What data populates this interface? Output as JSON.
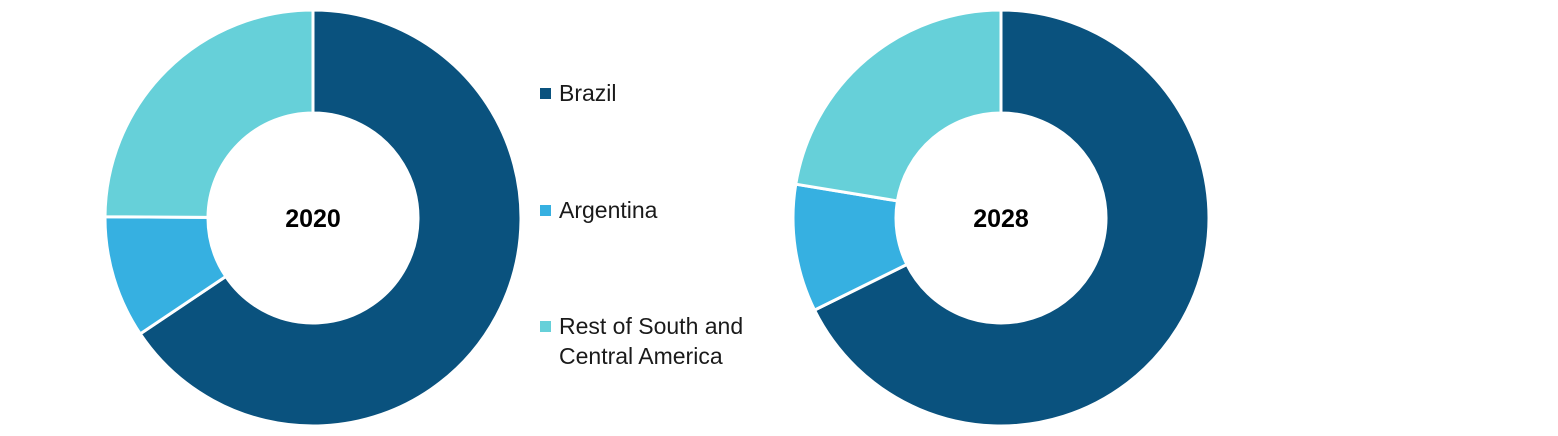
{
  "chart_data": [
    {
      "type": "pie",
      "variant": "donut",
      "center_label": "2020",
      "categories": [
        "Brazil",
        "Argentina",
        "Rest of South and Central America"
      ],
      "values": [
        65.6,
        9.5,
        24.9
      ],
      "unit": "%"
    },
    {
      "type": "pie",
      "variant": "donut",
      "center_label": "2028",
      "categories": [
        "Brazil",
        "Argentina",
        "Rest of South and Central America"
      ],
      "values": [
        67.7,
        9.9,
        22.4
      ],
      "unit": "%"
    }
  ],
  "legend": {
    "placement": "between charts",
    "items": [
      {
        "label": "Brazil",
        "color": "#0a527e"
      },
      {
        "label": "Argentina",
        "color": "#36b0e1"
      },
      {
        "label": "Rest of South and Central America",
        "color": "#66d0d9"
      }
    ]
  },
  "colors": [
    "#0a527e",
    "#36b0e1",
    "#66d0d9"
  ]
}
